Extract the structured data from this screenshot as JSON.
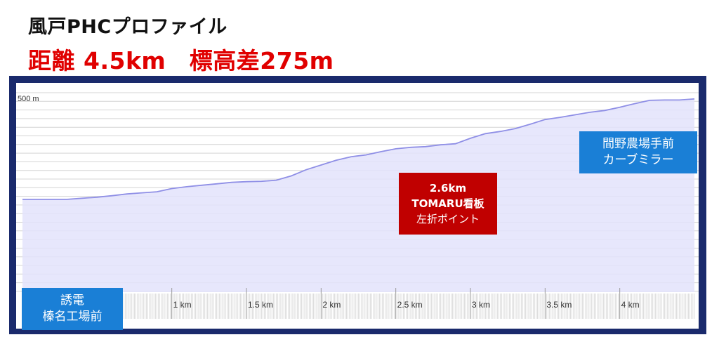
{
  "title": "風戸PHCプロファイル",
  "subtitle": "距離 4.5km　標高差275m",
  "labels": {
    "start": [
      "誘電",
      "榛名工場前"
    ],
    "point": [
      "2.6km",
      "TOMARU看板",
      "左折ポイント"
    ],
    "end": [
      "間野農場手前",
      "カーブミラー"
    ]
  },
  "colors": {
    "frame": "#1a2a6c",
    "profile_fill": "#e3e3fb",
    "profile_line": "#8f8fe6",
    "start_box": "#1a7fd6",
    "end_box": "#1a7fd6",
    "point_box": "#c00000",
    "subtitle": "#e00000"
  },
  "chart_data": {
    "type": "area",
    "x_unit": "km",
    "y_unit": "m",
    "xlim": [
      0,
      4.5
    ],
    "ylim": [
      0,
      500
    ],
    "y_tick_label": "500 m",
    "x_ticks": [
      1,
      1.5,
      2,
      2.5,
      3,
      3.5,
      4
    ],
    "x_tick_labels": [
      "1 km",
      "1.5 km",
      "2 km",
      "2.5 km",
      "3 km",
      "3.5 km",
      "4 km"
    ],
    "grid": true,
    "x": [
      0,
      0.3,
      0.4,
      0.5,
      0.6,
      0.7,
      0.8,
      0.9,
      1.0,
      1.1,
      1.2,
      1.3,
      1.4,
      1.5,
      1.6,
      1.7,
      1.8,
      1.9,
      2.0,
      2.1,
      2.2,
      2.3,
      2.4,
      2.5,
      2.6,
      2.7,
      2.8,
      2.9,
      3.0,
      3.1,
      3.2,
      3.3,
      3.4,
      3.5,
      3.6,
      3.7,
      3.8,
      3.9,
      4.0,
      4.05,
      4.1,
      4.2,
      4.3,
      4.4,
      4.5
    ],
    "y": [
      197,
      197,
      200,
      203,
      207,
      212,
      215,
      218,
      227,
      232,
      236,
      240,
      244,
      246,
      247,
      250,
      262,
      279,
      292,
      305,
      315,
      320,
      329,
      337,
      341,
      343,
      348,
      351,
      366,
      379,
      385,
      393,
      405,
      418,
      424,
      431,
      438,
      443,
      452,
      457,
      462,
      471,
      472,
      472,
      475
    ]
  }
}
